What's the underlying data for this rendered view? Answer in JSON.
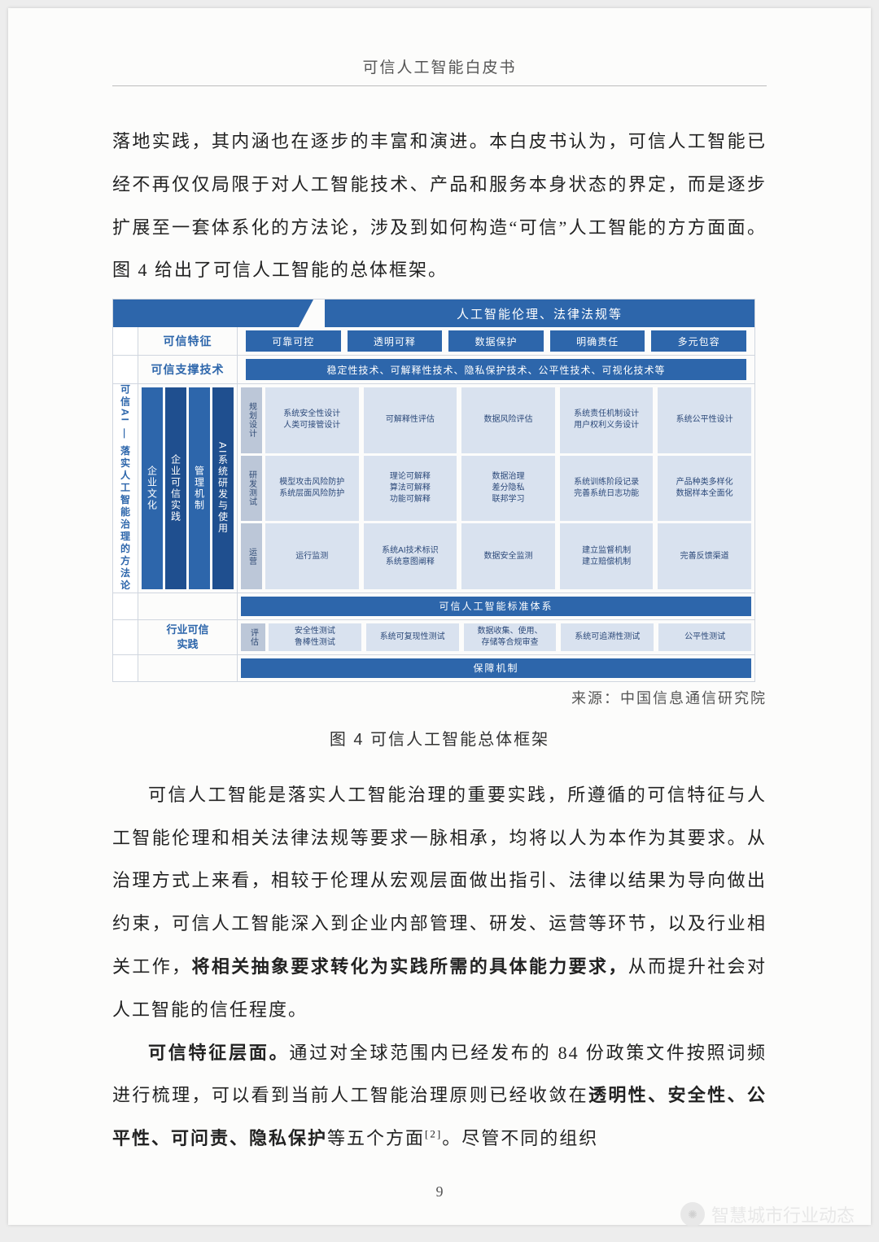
{
  "header": {
    "title": "可信人工智能白皮书"
  },
  "para1": "落地实践，其内涵也在逐步的丰富和演进。本白皮书认为，可信人工智能已经不再仅仅局限于对人工智能技术、产品和服务本身状态的界定，而是逐步扩展至一套体系化的方法论，涉及到如何构造“可信”人工智能的方方面面。图 4 给出了可信人工智能的总体框架。",
  "source": "来源：中国信息通信研究院",
  "caption": "图 4  可信人工智能总体框架",
  "para2a": "可信人工智能是落实人工智能治理的重要实践，所遵循的可信特征与人工智能伦理和相关法律法规等要求一脉相承，均将以人为本作为其要求。从治理方式上来看，相较于伦理从宏观层面做出指引、法律以结果为导向做出约束，可信人工智能深入到企业内部管理、研发、运营等环节，以及行业相关工作，",
  "para2b": "将相关抽象要求转化为实践所需的具体能力要求，",
  "para2c": "从而提升社会对人工智能的信任程度。",
  "para3a": "可信特征层面。",
  "para3b": "通过对全球范围内已经发布的 84 份政策文件按照词频进行梳理，可以看到当前人工智能治理原则已经收敛在",
  "para3c": "透明性、安全性、公平性、可问责、隐私保护",
  "para3d": "等五个方面",
  "para3ref": "[2]",
  "para3e": "。尽管不同的组织",
  "pageNum": "9",
  "watermark": {
    "icon": "✺",
    "text": "智慧城市行业动态"
  },
  "diagram": {
    "topBand": "人工智能伦理、法律法规等",
    "trustFeatureLabel": "可信特征",
    "features": [
      "可靠可控",
      "透明可释",
      "数据保护",
      "明确责任",
      "多元包容"
    ],
    "supportLabel": "可信支撑技术",
    "supportLong": "稳定性技术、可解释性技术、隐私保护技术、公平性技术、可视化技术等",
    "sideLabel": "可信AI — 落实人工智能治理的方法论",
    "midLabel": {
      "a": "企业文化",
      "b": "企业可信实践",
      "c": "管理机制",
      "d": "AI系统研发与使用"
    },
    "stages": [
      "规划设计",
      "研发测试",
      "运营"
    ],
    "grid": [
      [
        [
          "系统安全性设计",
          "人类可接管设计"
        ],
        [
          "可解释性评估"
        ],
        [
          "数据风险评估"
        ],
        [
          "系统责任机制设计",
          "用户权利义务设计"
        ],
        [
          "系统公平性设计"
        ]
      ],
      [
        [
          "模型攻击风险防护",
          "系统层面风险防护"
        ],
        [
          "理论可解释",
          "算法可解释",
          "功能可解释"
        ],
        [
          "数据治理",
          "差分隐私",
          "联邦学习"
        ],
        [
          "系统训练阶段记录",
          "完善系统日志功能"
        ],
        [
          "产品种类多样化",
          "数据样本全面化"
        ]
      ],
      [
        [
          "运行监测"
        ],
        [
          "系统AI技术标识",
          "系统意图阐释"
        ],
        [
          "数据安全监测"
        ],
        [
          "建立监督机制",
          "建立赔偿机制"
        ],
        [
          "完善反馈渠道"
        ]
      ]
    ],
    "stdSystem": "可信人工智能标准体系",
    "indLabel1": "行业可信",
    "indLabel2": "实践",
    "indStage": "评估",
    "indGrid": [
      [
        [
          "安全性测试",
          "鲁棒性测试"
        ],
        [
          "系统可复现性测试"
        ],
        [
          "数据收集、使用、",
          "存储等合规审查"
        ],
        [
          "系统可追溯性测试"
        ],
        [
          "公平性测试"
        ]
      ]
    ],
    "bottom": "保障机制",
    "colors": {
      "brand": "#2d66ab",
      "darkBrand": "#1f4f8f",
      "cellBg": "#d9e2ef",
      "cellText": "#2d4a7a",
      "stageBg": "#bcc7d8",
      "border": "#d0d6df",
      "pageBg": "#fcfcfb",
      "bodyBg": "#ededed"
    }
  }
}
